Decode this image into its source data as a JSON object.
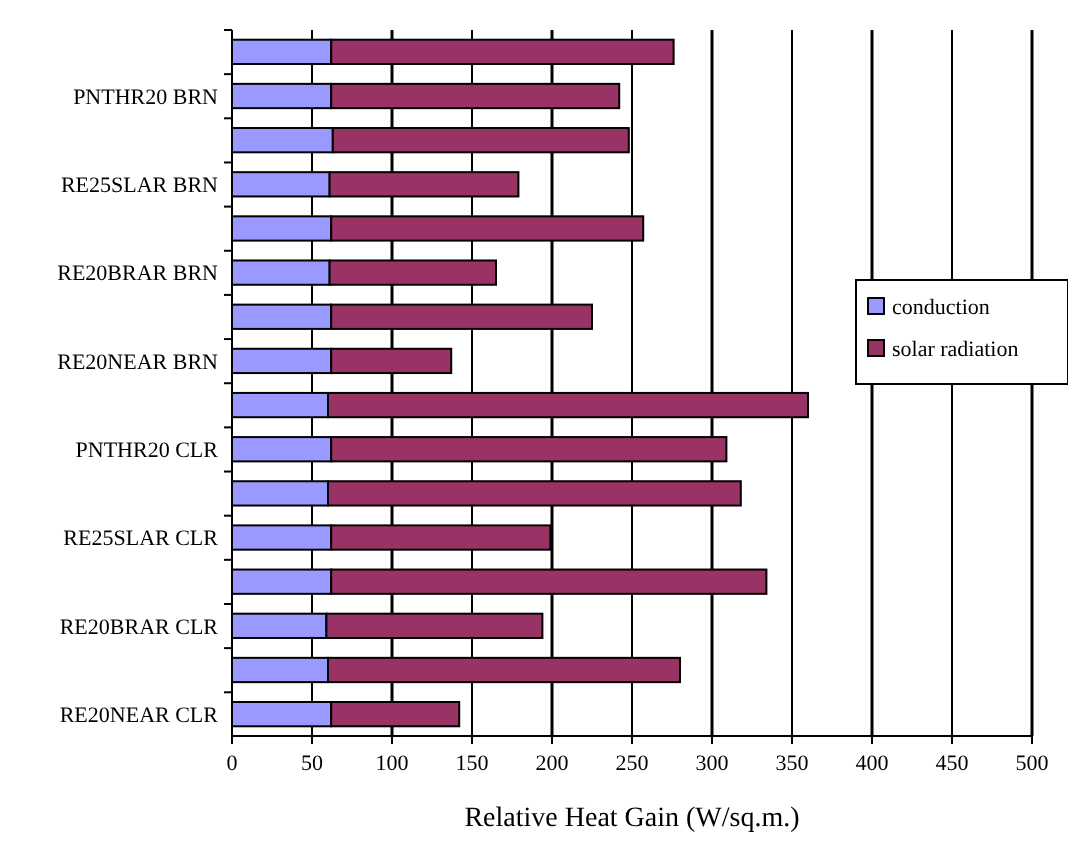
{
  "chart_data": {
    "type": "bar",
    "orientation": "horizontal",
    "stacked": true,
    "categories": [
      null,
      "PNTHR20 BRN",
      null,
      "RE25SLAR BRN",
      null,
      "RE20BRAR BRN",
      null,
      "RE20NEAR BRN",
      null,
      "PNTHR20 CLR",
      null,
      "RE25SLAR CLR",
      null,
      "RE20BRAR CLR",
      null,
      "RE20NEAR CLR"
    ],
    "series": [
      {
        "name": "conduction",
        "color": "#9999ff",
        "values": [
          62,
          62,
          63,
          61,
          62,
          61,
          62,
          62,
          60,
          62,
          60,
          62,
          62,
          59,
          60,
          62
        ]
      },
      {
        "name": "solar radiation",
        "color": "#993366",
        "values": [
          214,
          180,
          185,
          118,
          195,
          104,
          163,
          75,
          300,
          247,
          258,
          137,
          272,
          135,
          220,
          80
        ]
      }
    ],
    "xlabel": "Relative Heat Gain (W/sq.m.)",
    "xlim": [
      0,
      500
    ],
    "xticks": [
      0,
      50,
      100,
      150,
      200,
      250,
      300,
      350,
      400,
      450,
      500
    ],
    "grid": "x",
    "legend": "right"
  }
}
